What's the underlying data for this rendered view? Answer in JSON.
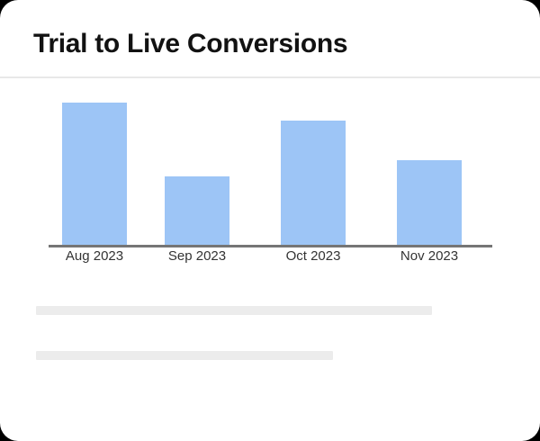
{
  "header": {
    "title": "Trial to Live Conversions"
  },
  "theme": {
    "page_bg": "#000000",
    "card_bg": "#ffffff",
    "title_color": "#121212",
    "divider_color": "#e8e8e8",
    "bar_color": "#9DC5F6",
    "axis_color": "#757575",
    "label_color": "#333333",
    "skeleton_color": "#ECECEC"
  },
  "chart_data": {
    "type": "bar",
    "title": "Trial to Live Conversions",
    "categories": [
      "Aug 2023",
      "Sep 2023",
      "Oct 2023",
      "Nov 2023"
    ],
    "values": [
      100,
      48,
      87,
      59
    ],
    "xlabel": "",
    "ylabel": "",
    "ylim": [
      0,
      100
    ],
    "y_axis_tick_labels_visible": false,
    "grid": false,
    "legend": false,
    "bar_color": "#9DC5F6",
    "note": "y-axis is unlabeled; values are relative heights normalized to tallest bar = 100"
  }
}
